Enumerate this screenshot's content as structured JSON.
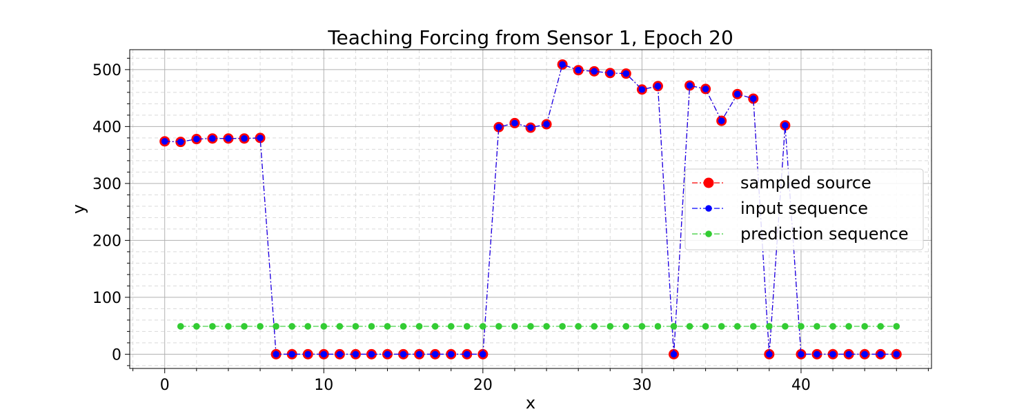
{
  "chart_data": {
    "type": "line",
    "title": "Teaching Forcing from Sensor 1, Epoch 20",
    "xlabel": "x",
    "ylabel": "y",
    "xlim": [
      -2.2,
      48.2
    ],
    "ylim": [
      -25,
      535
    ],
    "xticks": [
      0,
      10,
      20,
      30,
      40
    ],
    "yticks": [
      0,
      100,
      200,
      300,
      400,
      500
    ],
    "grid": true,
    "legend_position": "right",
    "series": [
      {
        "name": "sampled source",
        "color": "#ff0000",
        "marker": "large-circle",
        "x": [
          0,
          1,
          2,
          3,
          4,
          5,
          6,
          7,
          8,
          9,
          10,
          11,
          12,
          13,
          14,
          15,
          16,
          17,
          18,
          19,
          20,
          21,
          22,
          23,
          24,
          25,
          26,
          27,
          28,
          29,
          30,
          31,
          32,
          33,
          34,
          35,
          36,
          37,
          38,
          39,
          40,
          41,
          42,
          43,
          44,
          45,
          46
        ],
        "values": [
          374,
          373,
          378,
          379,
          379,
          379,
          380,
          0,
          0,
          0,
          0,
          0,
          0,
          0,
          0,
          0,
          0,
          0,
          0,
          0,
          0,
          399,
          406,
          398,
          404,
          509,
          499,
          497,
          494,
          493,
          465,
          471,
          0,
          472,
          466,
          410,
          457,
          449,
          0,
          402,
          0,
          0,
          0,
          0,
          0,
          0,
          0
        ]
      },
      {
        "name": "input sequence",
        "color": "#0000ff",
        "marker": "circle",
        "x": [
          0,
          1,
          2,
          3,
          4,
          5,
          6,
          7,
          8,
          9,
          10,
          11,
          12,
          13,
          14,
          15,
          16,
          17,
          18,
          19,
          20,
          21,
          22,
          23,
          24,
          25,
          26,
          27,
          28,
          29,
          30,
          31,
          32,
          33,
          34,
          35,
          36,
          37,
          38,
          39,
          40,
          41,
          42,
          43,
          44,
          45,
          46
        ],
        "values": [
          374,
          373,
          378,
          379,
          379,
          379,
          380,
          0,
          0,
          0,
          0,
          0,
          0,
          0,
          0,
          0,
          0,
          0,
          0,
          0,
          0,
          399,
          406,
          398,
          404,
          509,
          499,
          497,
          494,
          493,
          465,
          471,
          0,
          472,
          466,
          410,
          457,
          449,
          0,
          402,
          0,
          0,
          0,
          0,
          0,
          0,
          0
        ]
      },
      {
        "name": "prediction sequence",
        "color": "#33cc33",
        "marker": "circle",
        "x": [
          1,
          2,
          3,
          4,
          5,
          6,
          7,
          8,
          9,
          10,
          11,
          12,
          13,
          14,
          15,
          16,
          17,
          18,
          19,
          20,
          21,
          22,
          23,
          24,
          25,
          26,
          27,
          28,
          29,
          30,
          31,
          32,
          33,
          34,
          35,
          36,
          37,
          38,
          39,
          40,
          41,
          42,
          43,
          44,
          45,
          46
        ],
        "values": [
          49,
          49,
          49,
          49,
          49,
          49,
          49,
          49,
          49,
          49,
          49,
          49,
          49,
          49,
          49,
          49,
          49,
          49,
          49,
          49,
          49,
          49,
          49,
          49,
          49,
          49,
          49,
          49,
          49,
          49,
          49,
          49,
          49,
          49,
          49,
          49,
          49,
          49,
          49,
          49,
          49,
          49,
          49,
          49,
          49,
          49
        ]
      }
    ]
  }
}
